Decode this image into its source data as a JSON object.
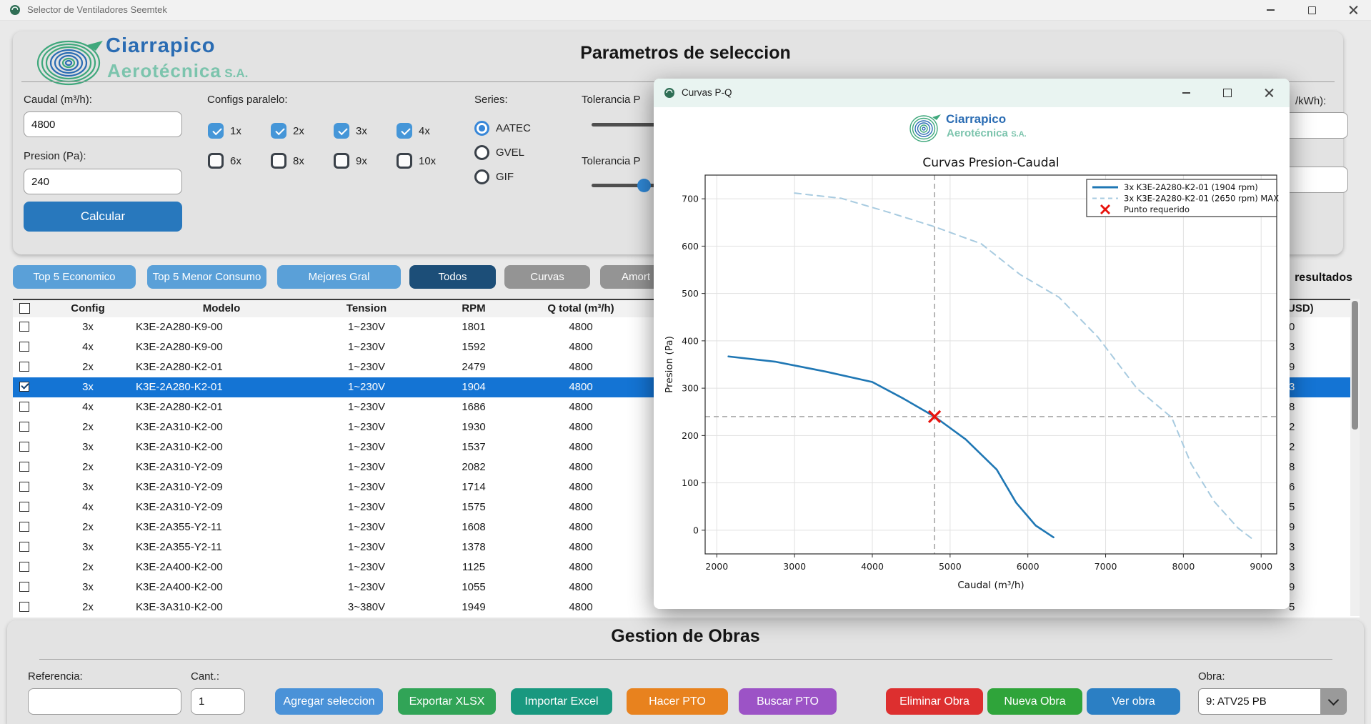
{
  "window": {
    "title": "Selector de Ventiladores Seemtek"
  },
  "header": {
    "logo": {
      "line1": "Ciarrapico",
      "line2": "Aerotécnica",
      "suffix": "S.A."
    },
    "title": "Parametros de seleccion",
    "caudal_label": "Caudal (m³/h):",
    "caudal_value": "4800",
    "presion_label": "Presion (Pa):",
    "presion_value": "240",
    "calcular_label": "Calcular",
    "configs_label": "Configs paralelo:",
    "configs": [
      {
        "label": "1x",
        "checked": true
      },
      {
        "label": "2x",
        "checked": true
      },
      {
        "label": "3x",
        "checked": true
      },
      {
        "label": "4x",
        "checked": true
      },
      {
        "label": "6x",
        "checked": false
      },
      {
        "label": "8x",
        "checked": false
      },
      {
        "label": "9x",
        "checked": false
      },
      {
        "label": "10x",
        "checked": false
      }
    ],
    "series_label": "Series:",
    "series_options": [
      {
        "label": "AATEC",
        "selected": true
      },
      {
        "label": "GVEL",
        "selected": false
      },
      {
        "label": "GIF",
        "selected": false
      }
    ],
    "tolerancia1_label": "Tolerancia P",
    "tolerancia2_label": "Tolerancia P",
    "kwh_label": "/kWh):"
  },
  "tabs": [
    {
      "label": "Top 5 Economico",
      "color": "#5aa0d8",
      "active": false
    },
    {
      "label": "Top 5 Menor Consumo",
      "color": "#5aa0d8",
      "active": false
    },
    {
      "label": "Mejores Gral",
      "color": "#5aa0d8",
      "active": false
    },
    {
      "label": "Todos",
      "color": "#1c4e78",
      "active": true
    },
    {
      "label": "Curvas",
      "color": "#949494",
      "active": false
    },
    {
      "label": "Amort",
      "color": "#949494",
      "active": false
    }
  ],
  "results_label": "resultados",
  "table": {
    "headers": {
      "config": "Config",
      "modelo": "Modelo",
      "tension": "Tension",
      "rpm": "RPM",
      "qtotal": "Q total (m³/h)",
      "usd": "(USD)"
    },
    "rows": [
      {
        "config": "3x",
        "modelo": "K3E-2A280-K9-00",
        "tension": "1~230V",
        "rpm": "1801",
        "qtotal": "4800",
        "usd_last": "0",
        "selected": false,
        "checked": false
      },
      {
        "config": "4x",
        "modelo": "K3E-2A280-K9-00",
        "tension": "1~230V",
        "rpm": "1592",
        "qtotal": "4800",
        "usd_last": "3",
        "selected": false,
        "checked": false
      },
      {
        "config": "2x",
        "modelo": "K3E-2A280-K2-01",
        "tension": "1~230V",
        "rpm": "2479",
        "qtotal": "4800",
        "usd_last": "9",
        "selected": false,
        "checked": false
      },
      {
        "config": "3x",
        "modelo": "K3E-2A280-K2-01",
        "tension": "1~230V",
        "rpm": "1904",
        "qtotal": "4800",
        "usd_last": "3",
        "selected": true,
        "checked": true
      },
      {
        "config": "4x",
        "modelo": "K3E-2A280-K2-01",
        "tension": "1~230V",
        "rpm": "1686",
        "qtotal": "4800",
        "usd_last": "8",
        "selected": false,
        "checked": false
      },
      {
        "config": "2x",
        "modelo": "K3E-2A310-K2-00",
        "tension": "1~230V",
        "rpm": "1930",
        "qtotal": "4800",
        "usd_last": "2",
        "selected": false,
        "checked": false
      },
      {
        "config": "3x",
        "modelo": "K3E-2A310-K2-00",
        "tension": "1~230V",
        "rpm": "1537",
        "qtotal": "4800",
        "usd_last": "2",
        "selected": false,
        "checked": false
      },
      {
        "config": "2x",
        "modelo": "K3E-2A310-Y2-09",
        "tension": "1~230V",
        "rpm": "2082",
        "qtotal": "4800",
        "usd_last": "8",
        "selected": false,
        "checked": false
      },
      {
        "config": "3x",
        "modelo": "K3E-2A310-Y2-09",
        "tension": "1~230V",
        "rpm": "1714",
        "qtotal": "4800",
        "usd_last": "6",
        "selected": false,
        "checked": false
      },
      {
        "config": "4x",
        "modelo": "K3E-2A310-Y2-09",
        "tension": "1~230V",
        "rpm": "1575",
        "qtotal": "4800",
        "usd_last": "5",
        "selected": false,
        "checked": false
      },
      {
        "config": "2x",
        "modelo": "K3E-2A355-Y2-11",
        "tension": "1~230V",
        "rpm": "1608",
        "qtotal": "4800",
        "usd_last": "9",
        "selected": false,
        "checked": false
      },
      {
        "config": "3x",
        "modelo": "K3E-2A355-Y2-11",
        "tension": "1~230V",
        "rpm": "1378",
        "qtotal": "4800",
        "usd_last": "3",
        "selected": false,
        "checked": false
      },
      {
        "config": "2x",
        "modelo": "K3E-2A400-K2-00",
        "tension": "1~230V",
        "rpm": "1125",
        "qtotal": "4800",
        "usd_last": "3",
        "selected": false,
        "checked": false
      },
      {
        "config": "3x",
        "modelo": "K3E-2A400-K2-00",
        "tension": "1~230V",
        "rpm": "1055",
        "qtotal": "4800",
        "usd_last": "9",
        "selected": false,
        "checked": false
      },
      {
        "config": "2x",
        "modelo": "K3E-3A310-K2-00",
        "tension": "3~380V",
        "rpm": "1949",
        "qtotal": "4800",
        "usd_last": "5",
        "selected": false,
        "checked": false
      }
    ]
  },
  "dialog": {
    "title": "Curvas P-Q",
    "logo": {
      "line1": "Ciarrapico",
      "line2": "Aerotécnica",
      "suffix": "S.A."
    },
    "chart_data": {
      "type": "line",
      "title": "Curvas Presion-Caudal",
      "xlabel": "Caudal (m³/h)",
      "ylabel": "Presion (Pa)",
      "xlim": [
        1850,
        9200
      ],
      "ylim": [
        -50,
        750
      ],
      "xticks": [
        2000,
        3000,
        4000,
        5000,
        6000,
        7000,
        8000,
        9000
      ],
      "yticks": [
        0,
        100,
        200,
        300,
        400,
        500,
        600,
        700
      ],
      "grid": true,
      "legend_position": "upper right",
      "series": [
        {
          "name": "3x K3E-2A280-K2-01 (1904 rpm)",
          "style": "solid",
          "color": "#1f77b4",
          "width": 2.6,
          "points": [
            [
              2150,
              367
            ],
            [
              2750,
              356
            ],
            [
              3400,
              335
            ],
            [
              4000,
              313
            ],
            [
              4400,
              278
            ],
            [
              4800,
              240
            ],
            [
              5200,
              192
            ],
            [
              5600,
              128
            ],
            [
              5850,
              58
            ],
            [
              6100,
              10
            ],
            [
              6330,
              -15
            ]
          ]
        },
        {
          "name": "3x K3E-2A280-K2-01 (2650 rpm) MAX",
          "style": "dashed",
          "color": "#a8cbe0",
          "width": 2,
          "points": [
            [
              3000,
              712
            ],
            [
              3600,
              701
            ],
            [
              4200,
              672
            ],
            [
              4800,
              641
            ],
            [
              5400,
              605
            ],
            [
              5900,
              540
            ],
            [
              6400,
              492
            ],
            [
              6900,
              408
            ],
            [
              7400,
              300
            ],
            [
              7850,
              238
            ],
            [
              8100,
              140
            ],
            [
              8400,
              60
            ],
            [
              8700,
              5
            ],
            [
              8900,
              -20
            ]
          ]
        }
      ],
      "marker": {
        "name": "Punto requerido",
        "x": 4800,
        "y": 240,
        "color": "#e8120c"
      },
      "crosshair": {
        "x": 4800,
        "y": 240,
        "color": "#b0b0b0"
      }
    }
  },
  "gestion": {
    "title": "Gestion de Obras",
    "referencia_label": "Referencia:",
    "referencia_value": "",
    "cant_label": "Cant.:",
    "cant_value": "1",
    "buttons": [
      {
        "label": "Agregar seleccion",
        "color": "#4a92d8"
      },
      {
        "label": "Exportar XLSX",
        "color": "#31a457"
      },
      {
        "label": "Importar Excel",
        "color": "#19987f"
      },
      {
        "label": "Hacer PTO",
        "color": "#e8821e"
      },
      {
        "label": "Buscar PTO",
        "color": "#9c53c6"
      },
      {
        "label": "Eliminar Obra",
        "color": "#dd2f2f"
      },
      {
        "label": "Nueva Obra",
        "color": "#2fa43a"
      },
      {
        "label": "Ver obra",
        "color": "#2b7fc4"
      }
    ],
    "obra_label": "Obra:",
    "obra_value": "9: ATV25 PB"
  },
  "colors": {
    "accent_blue": "#2878bd",
    "selected_row": "#1474d4",
    "checkbox_checked": "#4596d8",
    "dialog_titlebar": "#e9f4f1"
  }
}
